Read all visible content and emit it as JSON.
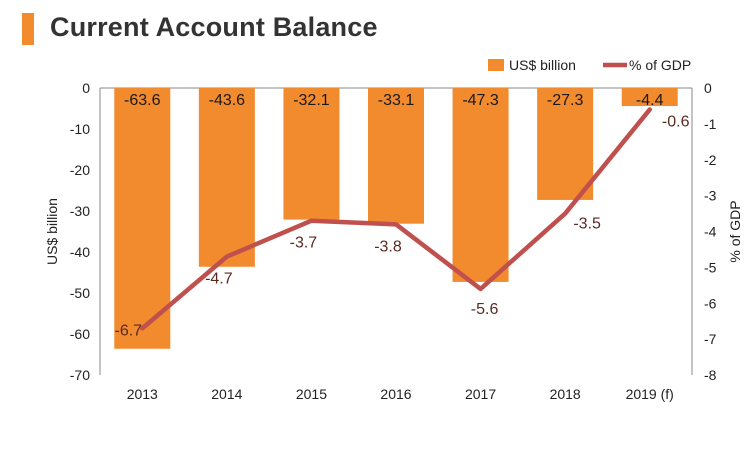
{
  "page": {
    "title": "Current Account Balance",
    "accent_color": "#f28a2e"
  },
  "chart_data": {
    "type": "bar",
    "categories": [
      "2013",
      "2014",
      "2015",
      "2016",
      "2017",
      "2018",
      "2019 (f)"
    ],
    "series": [
      {
        "name": "US$ billion",
        "type": "bar",
        "axis": "left",
        "color": "#f28a2e",
        "values": [
          -63.6,
          -43.6,
          -32.1,
          -33.1,
          -47.3,
          -27.3,
          -4.4
        ]
      },
      {
        "name": "% of GDP",
        "type": "line",
        "axis": "right",
        "color": "#c0504d",
        "values": [
          -6.7,
          -4.7,
          -3.7,
          -3.8,
          -5.6,
          -3.5,
          -0.6
        ]
      }
    ],
    "ylabel": "US$ billion",
    "y2label": "% of GDP",
    "ylim": [
      -70,
      0
    ],
    "y2lim": [
      -8,
      0
    ],
    "yticks": [
      0,
      -10,
      -20,
      -30,
      -40,
      -50,
      -60,
      -70
    ],
    "y2ticks": [
      0,
      -1,
      -2,
      -3,
      -4,
      -5,
      -6,
      -7,
      -8
    ],
    "legend_position": "top-right",
    "grid": false
  }
}
